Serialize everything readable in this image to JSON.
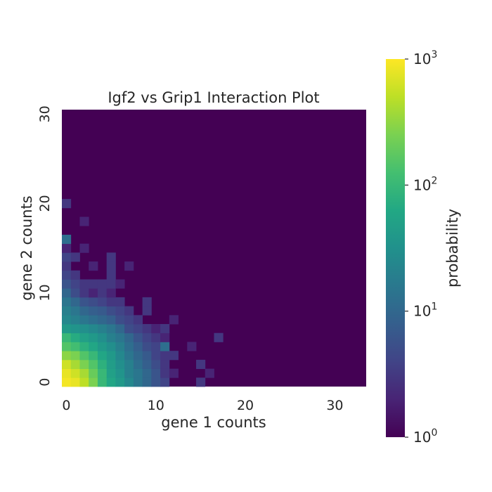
{
  "chart_data": {
    "type": "heatmap",
    "title": "Igf2 vs Grip1 Interaction Plot",
    "xlabel": "gene 1 counts",
    "ylabel": "gene 2 counts",
    "x_ticks": [
      0,
      10,
      20,
      30
    ],
    "y_ticks": [
      0,
      10,
      20,
      30
    ],
    "xlim": [
      0,
      34
    ],
    "ylim": [
      0,
      31
    ],
    "colorbar": {
      "label": "probability",
      "scale": "log",
      "colormap": "viridis",
      "range": [
        1,
        1000
      ],
      "ticks": [
        {
          "base": "10",
          "exp": "0",
          "value": 1
        },
        {
          "base": "10",
          "exp": "1",
          "value": 10
        },
        {
          "base": "10",
          "exp": "2",
          "value": 100
        },
        {
          "base": "10",
          "exp": "3",
          "value": 1000
        }
      ]
    },
    "background_value": 1,
    "cells": [
      {
        "x": 0,
        "y": 0,
        "v": 900
      },
      {
        "x": 1,
        "y": 0,
        "v": 800
      },
      {
        "x": 2,
        "y": 0,
        "v": 500
      },
      {
        "x": 3,
        "y": 0,
        "v": 250
      },
      {
        "x": 4,
        "y": 0,
        "v": 100
      },
      {
        "x": 5,
        "y": 0,
        "v": 60
      },
      {
        "x": 6,
        "y": 0,
        "v": 40
      },
      {
        "x": 7,
        "y": 0,
        "v": 25
      },
      {
        "x": 8,
        "y": 0,
        "v": 15
      },
      {
        "x": 9,
        "y": 0,
        "v": 10
      },
      {
        "x": 10,
        "y": 0,
        "v": 6
      },
      {
        "x": 11,
        "y": 0,
        "v": 4
      },
      {
        "x": 15,
        "y": 0,
        "v": 3
      },
      {
        "x": 0,
        "y": 1,
        "v": 800
      },
      {
        "x": 1,
        "y": 1,
        "v": 600
      },
      {
        "x": 2,
        "y": 1,
        "v": 400
      },
      {
        "x": 3,
        "y": 1,
        "v": 200
      },
      {
        "x": 4,
        "y": 1,
        "v": 100
      },
      {
        "x": 5,
        "y": 1,
        "v": 50
      },
      {
        "x": 6,
        "y": 1,
        "v": 35
      },
      {
        "x": 7,
        "y": 1,
        "v": 20
      },
      {
        "x": 8,
        "y": 1,
        "v": 15
      },
      {
        "x": 9,
        "y": 1,
        "v": 10
      },
      {
        "x": 10,
        "y": 1,
        "v": 6
      },
      {
        "x": 11,
        "y": 1,
        "v": 3
      },
      {
        "x": 12,
        "y": 1,
        "v": 2
      },
      {
        "x": 16,
        "y": 1,
        "v": 2
      },
      {
        "x": 0,
        "y": 2,
        "v": 600
      },
      {
        "x": 1,
        "y": 2,
        "v": 400
      },
      {
        "x": 2,
        "y": 2,
        "v": 250
      },
      {
        "x": 3,
        "y": 2,
        "v": 150
      },
      {
        "x": 4,
        "y": 2,
        "v": 80
      },
      {
        "x": 5,
        "y": 2,
        "v": 45
      },
      {
        "x": 6,
        "y": 2,
        "v": 30
      },
      {
        "x": 7,
        "y": 2,
        "v": 20
      },
      {
        "x": 8,
        "y": 2,
        "v": 12
      },
      {
        "x": 9,
        "y": 2,
        "v": 8
      },
      {
        "x": 10,
        "y": 2,
        "v": 5
      },
      {
        "x": 11,
        "y": 2,
        "v": 3
      },
      {
        "x": 15,
        "y": 2,
        "v": 3
      },
      {
        "x": 0,
        "y": 3,
        "v": 300
      },
      {
        "x": 1,
        "y": 3,
        "v": 250
      },
      {
        "x": 2,
        "y": 3,
        "v": 150
      },
      {
        "x": 3,
        "y": 3,
        "v": 100
      },
      {
        "x": 4,
        "y": 3,
        "v": 60
      },
      {
        "x": 5,
        "y": 3,
        "v": 40
      },
      {
        "x": 6,
        "y": 3,
        "v": 25
      },
      {
        "x": 7,
        "y": 3,
        "v": 15
      },
      {
        "x": 8,
        "y": 3,
        "v": 10
      },
      {
        "x": 9,
        "y": 3,
        "v": 7
      },
      {
        "x": 10,
        "y": 3,
        "v": 4
      },
      {
        "x": 11,
        "y": 3,
        "v": 3
      },
      {
        "x": 12,
        "y": 3,
        "v": 3
      },
      {
        "x": 0,
        "y": 4,
        "v": 150
      },
      {
        "x": 1,
        "y": 4,
        "v": 120
      },
      {
        "x": 2,
        "y": 4,
        "v": 80
      },
      {
        "x": 3,
        "y": 4,
        "v": 60
      },
      {
        "x": 4,
        "y": 4,
        "v": 40
      },
      {
        "x": 5,
        "y": 4,
        "v": 30
      },
      {
        "x": 6,
        "y": 4,
        "v": 20
      },
      {
        "x": 7,
        "y": 4,
        "v": 12
      },
      {
        "x": 8,
        "y": 4,
        "v": 8
      },
      {
        "x": 9,
        "y": 4,
        "v": 5
      },
      {
        "x": 10,
        "y": 4,
        "v": 4
      },
      {
        "x": 11,
        "y": 4,
        "v": 12
      },
      {
        "x": 14,
        "y": 4,
        "v": 2
      },
      {
        "x": 0,
        "y": 5,
        "v": 100
      },
      {
        "x": 1,
        "y": 5,
        "v": 70
      },
      {
        "x": 2,
        "y": 5,
        "v": 50
      },
      {
        "x": 3,
        "y": 5,
        "v": 40
      },
      {
        "x": 4,
        "y": 5,
        "v": 30
      },
      {
        "x": 5,
        "y": 5,
        "v": 20
      },
      {
        "x": 6,
        "y": 5,
        "v": 15
      },
      {
        "x": 7,
        "y": 5,
        "v": 10
      },
      {
        "x": 8,
        "y": 5,
        "v": 6
      },
      {
        "x": 9,
        "y": 5,
        "v": 4
      },
      {
        "x": 10,
        "y": 5,
        "v": 3
      },
      {
        "x": 11,
        "y": 5,
        "v": 2
      },
      {
        "x": 17,
        "y": 5,
        "v": 3
      },
      {
        "x": 0,
        "y": 6,
        "v": 40
      },
      {
        "x": 1,
        "y": 6,
        "v": 35
      },
      {
        "x": 2,
        "y": 6,
        "v": 30
      },
      {
        "x": 3,
        "y": 6,
        "v": 25
      },
      {
        "x": 4,
        "y": 6,
        "v": 20
      },
      {
        "x": 5,
        "y": 6,
        "v": 15
      },
      {
        "x": 6,
        "y": 6,
        "v": 10
      },
      {
        "x": 7,
        "y": 6,
        "v": 5
      },
      {
        "x": 8,
        "y": 6,
        "v": 4
      },
      {
        "x": 9,
        "y": 6,
        "v": 3
      },
      {
        "x": 10,
        "y": 6,
        "v": 2
      },
      {
        "x": 11,
        "y": 6,
        "v": 3
      },
      {
        "x": 0,
        "y": 7,
        "v": 25
      },
      {
        "x": 1,
        "y": 7,
        "v": 20
      },
      {
        "x": 2,
        "y": 7,
        "v": 15
      },
      {
        "x": 3,
        "y": 7,
        "v": 12
      },
      {
        "x": 4,
        "y": 7,
        "v": 10
      },
      {
        "x": 5,
        "y": 7,
        "v": 8
      },
      {
        "x": 6,
        "y": 7,
        "v": 5
      },
      {
        "x": 7,
        "y": 7,
        "v": 4
      },
      {
        "x": 8,
        "y": 7,
        "v": 3
      },
      {
        "x": 12,
        "y": 7,
        "v": 2
      },
      {
        "x": 0,
        "y": 8,
        "v": 20
      },
      {
        "x": 1,
        "y": 8,
        "v": 15
      },
      {
        "x": 2,
        "y": 8,
        "v": 10
      },
      {
        "x": 3,
        "y": 8,
        "v": 8
      },
      {
        "x": 4,
        "y": 8,
        "v": 7
      },
      {
        "x": 5,
        "y": 8,
        "v": 5
      },
      {
        "x": 6,
        "y": 8,
        "v": 4
      },
      {
        "x": 7,
        "y": 8,
        "v": 3
      },
      {
        "x": 9,
        "y": 8,
        "v": 3
      },
      {
        "x": 0,
        "y": 9,
        "v": 15
      },
      {
        "x": 1,
        "y": 9,
        "v": 10
      },
      {
        "x": 2,
        "y": 9,
        "v": 6
      },
      {
        "x": 3,
        "y": 9,
        "v": 5
      },
      {
        "x": 4,
        "y": 9,
        "v": 4
      },
      {
        "x": 5,
        "y": 9,
        "v": 3
      },
      {
        "x": 6,
        "y": 9,
        "v": 3
      },
      {
        "x": 9,
        "y": 9,
        "v": 3
      },
      {
        "x": 0,
        "y": 10,
        "v": 10
      },
      {
        "x": 1,
        "y": 10,
        "v": 5
      },
      {
        "x": 2,
        "y": 10,
        "v": 3
      },
      {
        "x": 3,
        "y": 10,
        "v": 2
      },
      {
        "x": 4,
        "y": 10,
        "v": 3
      },
      {
        "x": 5,
        "y": 10,
        "v": 2
      },
      {
        "x": 0,
        "y": 11,
        "v": 6
      },
      {
        "x": 1,
        "y": 11,
        "v": 4
      },
      {
        "x": 2,
        "y": 11,
        "v": 3
      },
      {
        "x": 3,
        "y": 11,
        "v": 3
      },
      {
        "x": 4,
        "y": 11,
        "v": 3
      },
      {
        "x": 5,
        "y": 11,
        "v": 3
      },
      {
        "x": 6,
        "y": 11,
        "v": 2
      },
      {
        "x": 0,
        "y": 12,
        "v": 4
      },
      {
        "x": 1,
        "y": 12,
        "v": 3
      },
      {
        "x": 5,
        "y": 12,
        "v": 3
      },
      {
        "x": 0,
        "y": 13,
        "v": 3
      },
      {
        "x": 3,
        "y": 13,
        "v": 2
      },
      {
        "x": 5,
        "y": 13,
        "v": 3
      },
      {
        "x": 7,
        "y": 13,
        "v": 2
      },
      {
        "x": 0,
        "y": 14,
        "v": 4
      },
      {
        "x": 1,
        "y": 14,
        "v": 3
      },
      {
        "x": 5,
        "y": 14,
        "v": 3
      },
      {
        "x": 0,
        "y": 15,
        "v": 2
      },
      {
        "x": 2,
        "y": 15,
        "v": 2
      },
      {
        "x": 0,
        "y": 16,
        "v": 12
      },
      {
        "x": 2,
        "y": 18,
        "v": 2
      },
      {
        "x": 0,
        "y": 20,
        "v": 3
      }
    ]
  }
}
